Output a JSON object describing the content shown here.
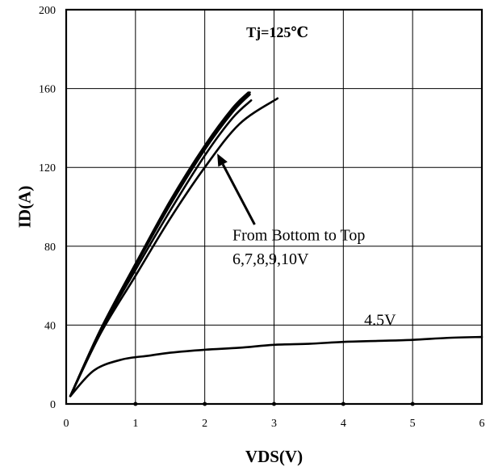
{
  "chart_data": {
    "type": "line",
    "title": "",
    "xlabel": "VDS(V)",
    "ylabel": "ID(A)",
    "xlim": [
      0,
      6
    ],
    "ylim": [
      0,
      200
    ],
    "x_ticks": [
      0,
      1,
      2,
      3,
      4,
      5,
      6
    ],
    "y_ticks": [
      0,
      40,
      80,
      120,
      160,
      200
    ],
    "grid": true,
    "legend": "none",
    "line_color": "#000000",
    "series": [
      {
        "x": [
          0.06,
          0.5,
          1.0,
          1.5,
          2.0,
          2.5,
          3.05
        ],
        "y": [
          4,
          36,
          65,
          94,
          120,
          142,
          155
        ]
      },
      {
        "x": [
          0.06,
          0.5,
          1.0,
          1.5,
          2.0,
          2.4,
          2.67
        ],
        "y": [
          4,
          37,
          68,
          98,
          126,
          145,
          154
        ]
      },
      {
        "x": [
          0.06,
          0.5,
          1.0,
          1.5,
          2.0,
          2.4,
          2.65
        ],
        "y": [
          4,
          38,
          70,
          101,
          129,
          148,
          157
        ]
      },
      {
        "x": [
          0.06,
          0.5,
          1.0,
          1.5,
          2.0,
          2.4,
          2.65
        ],
        "y": [
          4,
          38,
          71,
          102,
          130,
          149,
          158
        ]
      },
      {
        "x": [
          0.06,
          0.5,
          1.0,
          1.5,
          2.0,
          2.4,
          2.63
        ],
        "y": [
          4,
          38,
          71,
          103,
          131,
          150,
          158
        ]
      },
      {
        "x": [
          0.06,
          0.4,
          0.8,
          1.2,
          1.5,
          2.0,
          2.5,
          3.0,
          3.5,
          4.0,
          4.5,
          5.0,
          5.5,
          6.0
        ],
        "y": [
          4,
          17,
          22.5,
          24.5,
          26,
          27.5,
          28.5,
          30,
          30.5,
          31.5,
          32,
          32.5,
          33.5,
          34
        ]
      }
    ],
    "annotations": [
      {
        "text": "Tj=125℃",
        "x": 2.6,
        "y": 186
      },
      {
        "text": "From Bottom to Top",
        "x": 2.4,
        "y": 83
      },
      {
        "text": "6,7,8,9,10V",
        "x": 2.4,
        "y": 71
      },
      {
        "text": "4.5V",
        "x": 4.3,
        "y": 40
      }
    ],
    "arrow": {
      "from": [
        2.72,
        91
      ],
      "to": [
        2.18,
        127
      ]
    }
  }
}
